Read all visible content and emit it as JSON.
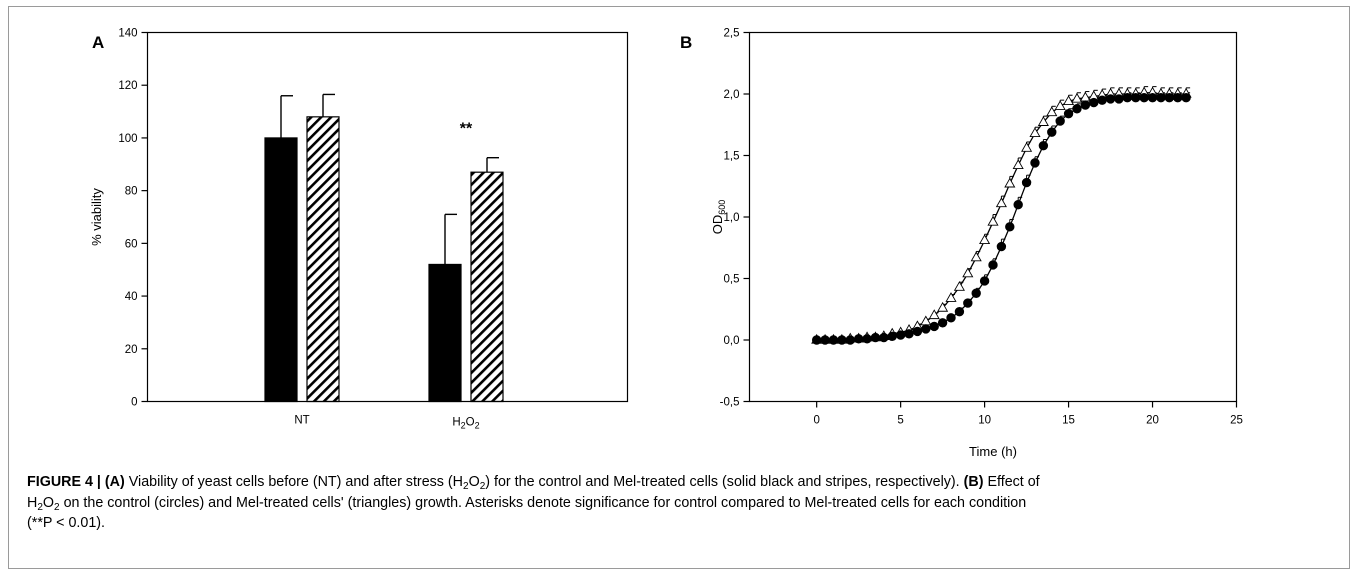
{
  "chart_data": [
    {
      "panel": "A",
      "type": "bar",
      "categories": [
        "NT",
        "H2O2"
      ],
      "series": [
        {
          "fill": "solid-black",
          "values": [
            100,
            52
          ],
          "errors": [
            16,
            19
          ]
        },
        {
          "fill": "diagonal-stripes",
          "values": [
            108,
            87
          ],
          "errors": [
            8.5,
            5.5
          ]
        }
      ],
      "annotations": [
        {
          "text": "**",
          "category": "H2O2"
        }
      ],
      "ylabel": "% viability",
      "ylim": [
        0,
        140
      ],
      "yticks": [
        0,
        20,
        40,
        60,
        80,
        100,
        120,
        140
      ],
      "grid": false,
      "legend": "none"
    },
    {
      "panel": "B",
      "type": "scatter",
      "xlabel": "Time (h)",
      "ylabel_main": "OD",
      "ylabel_sub": "600",
      "xlim": [
        -4,
        25
      ],
      "ylim": [
        -0.5,
        2.5
      ],
      "xticks": [
        "0",
        "5",
        "10",
        "15",
        "20",
        "25"
      ],
      "yticks": [
        "-0,5",
        "0,0",
        "0,5",
        "1,0",
        "1,5",
        "2,0",
        "2,5"
      ],
      "grid": false,
      "legend": "none",
      "series": [
        {
          "marker": "filled-circle",
          "x": [
            0,
            0.5,
            1,
            1.5,
            2,
            2.5,
            3,
            3.5,
            4,
            4.5,
            5,
            5.5,
            6,
            6.5,
            7,
            7.5,
            8,
            8.5,
            9,
            9.5,
            10,
            10.5,
            11,
            11.5,
            12,
            12.5,
            13,
            13.5,
            14,
            14.5,
            15,
            15.5,
            16,
            16.5,
            17,
            17.5,
            18,
            18.5,
            19,
            19.5,
            20,
            20.5,
            21,
            21.5,
            22
          ],
          "y": [
            0,
            0,
            0,
            0,
            0,
            0.01,
            0.01,
            0.02,
            0.02,
            0.03,
            0.04,
            0.05,
            0.07,
            0.09,
            0.11,
            0.14,
            0.18,
            0.23,
            0.3,
            0.38,
            0.48,
            0.61,
            0.76,
            0.92,
            1.1,
            1.28,
            1.44,
            1.58,
            1.69,
            1.78,
            1.84,
            1.88,
            1.91,
            1.93,
            1.95,
            1.96,
            1.96,
            1.97,
            1.97,
            1.97,
            1.97,
            1.97,
            1.97,
            1.97,
            1.97
          ],
          "error": [
            0,
            0,
            0,
            0,
            0,
            0,
            0,
            0,
            0.01,
            0.01,
            0.01,
            0.01,
            0.01,
            0.01,
            0.02,
            0.02,
            0.02,
            0.03,
            0.03,
            0.04,
            0.05,
            0.05,
            0.06,
            0.06,
            0.06,
            0.06,
            0.05,
            0.05,
            0.05,
            0.04,
            0.04,
            0.04,
            0.04,
            0.04,
            0.04,
            0.04,
            0.04,
            0.04,
            0.04,
            0.04,
            0.04,
            0.04,
            0.04,
            0.04,
            0.04
          ]
        },
        {
          "marker": "open-triangle",
          "x": [
            0,
            0.5,
            1,
            1.5,
            2,
            2.5,
            3,
            3.5,
            4,
            4.5,
            5,
            5.5,
            6,
            6.5,
            7,
            7.5,
            8,
            8.5,
            9,
            9.5,
            10,
            10.5,
            11,
            11.5,
            12,
            12.5,
            13,
            13.5,
            14,
            14.5,
            15,
            15.5,
            16,
            16.5,
            17,
            17.5,
            18,
            18.5,
            19,
            19.5,
            20,
            20.5,
            21,
            21.5,
            22
          ],
          "y": [
            0,
            0,
            0,
            0,
            0.01,
            0.01,
            0.02,
            0.02,
            0.03,
            0.05,
            0.06,
            0.08,
            0.11,
            0.15,
            0.2,
            0.26,
            0.34,
            0.43,
            0.54,
            0.67,
            0.81,
            0.96,
            1.11,
            1.27,
            1.42,
            1.56,
            1.68,
            1.77,
            1.85,
            1.9,
            1.94,
            1.96,
            1.97,
            1.98,
            1.99,
            2.0,
            2.0,
            2.0,
            2.0,
            2.01,
            2.01,
            2.0,
            2.0,
            2.0,
            2.0
          ],
          "error": [
            0,
            0,
            0,
            0,
            0,
            0,
            0,
            0.01,
            0.01,
            0.01,
            0.01,
            0.01,
            0.02,
            0.02,
            0.02,
            0.03,
            0.03,
            0.04,
            0.04,
            0.05,
            0.05,
            0.06,
            0.06,
            0.06,
            0.06,
            0.05,
            0.05,
            0.05,
            0.05,
            0.05,
            0.05,
            0.05,
            0.05,
            0.05,
            0.05,
            0.05,
            0.05,
            0.05,
            0.05,
            0.05,
            0.05,
            0.05,
            0.05,
            0.05,
            0.05
          ]
        }
      ]
    }
  ],
  "caption": {
    "figure_label": "FIGURE 4 |",
    "a_label": "(A)",
    "a_text_1": "Viability of yeast cells before (NT) and after stress (H",
    "a_text_2": ") for the control and Mel-treated cells (solid black and stripes, respectively).",
    "b_label": "(B)",
    "b_text_1": "Effect of",
    "b_text_2": "on the control (circles) and Mel-treated cells' (triangles) growth. Asterisks denote significance for control compared to Mel-treated cells for each condition",
    "pvalue": "(**P < 0.01)."
  },
  "chem": {
    "h": "H",
    "o": "O",
    "sub": "2"
  }
}
